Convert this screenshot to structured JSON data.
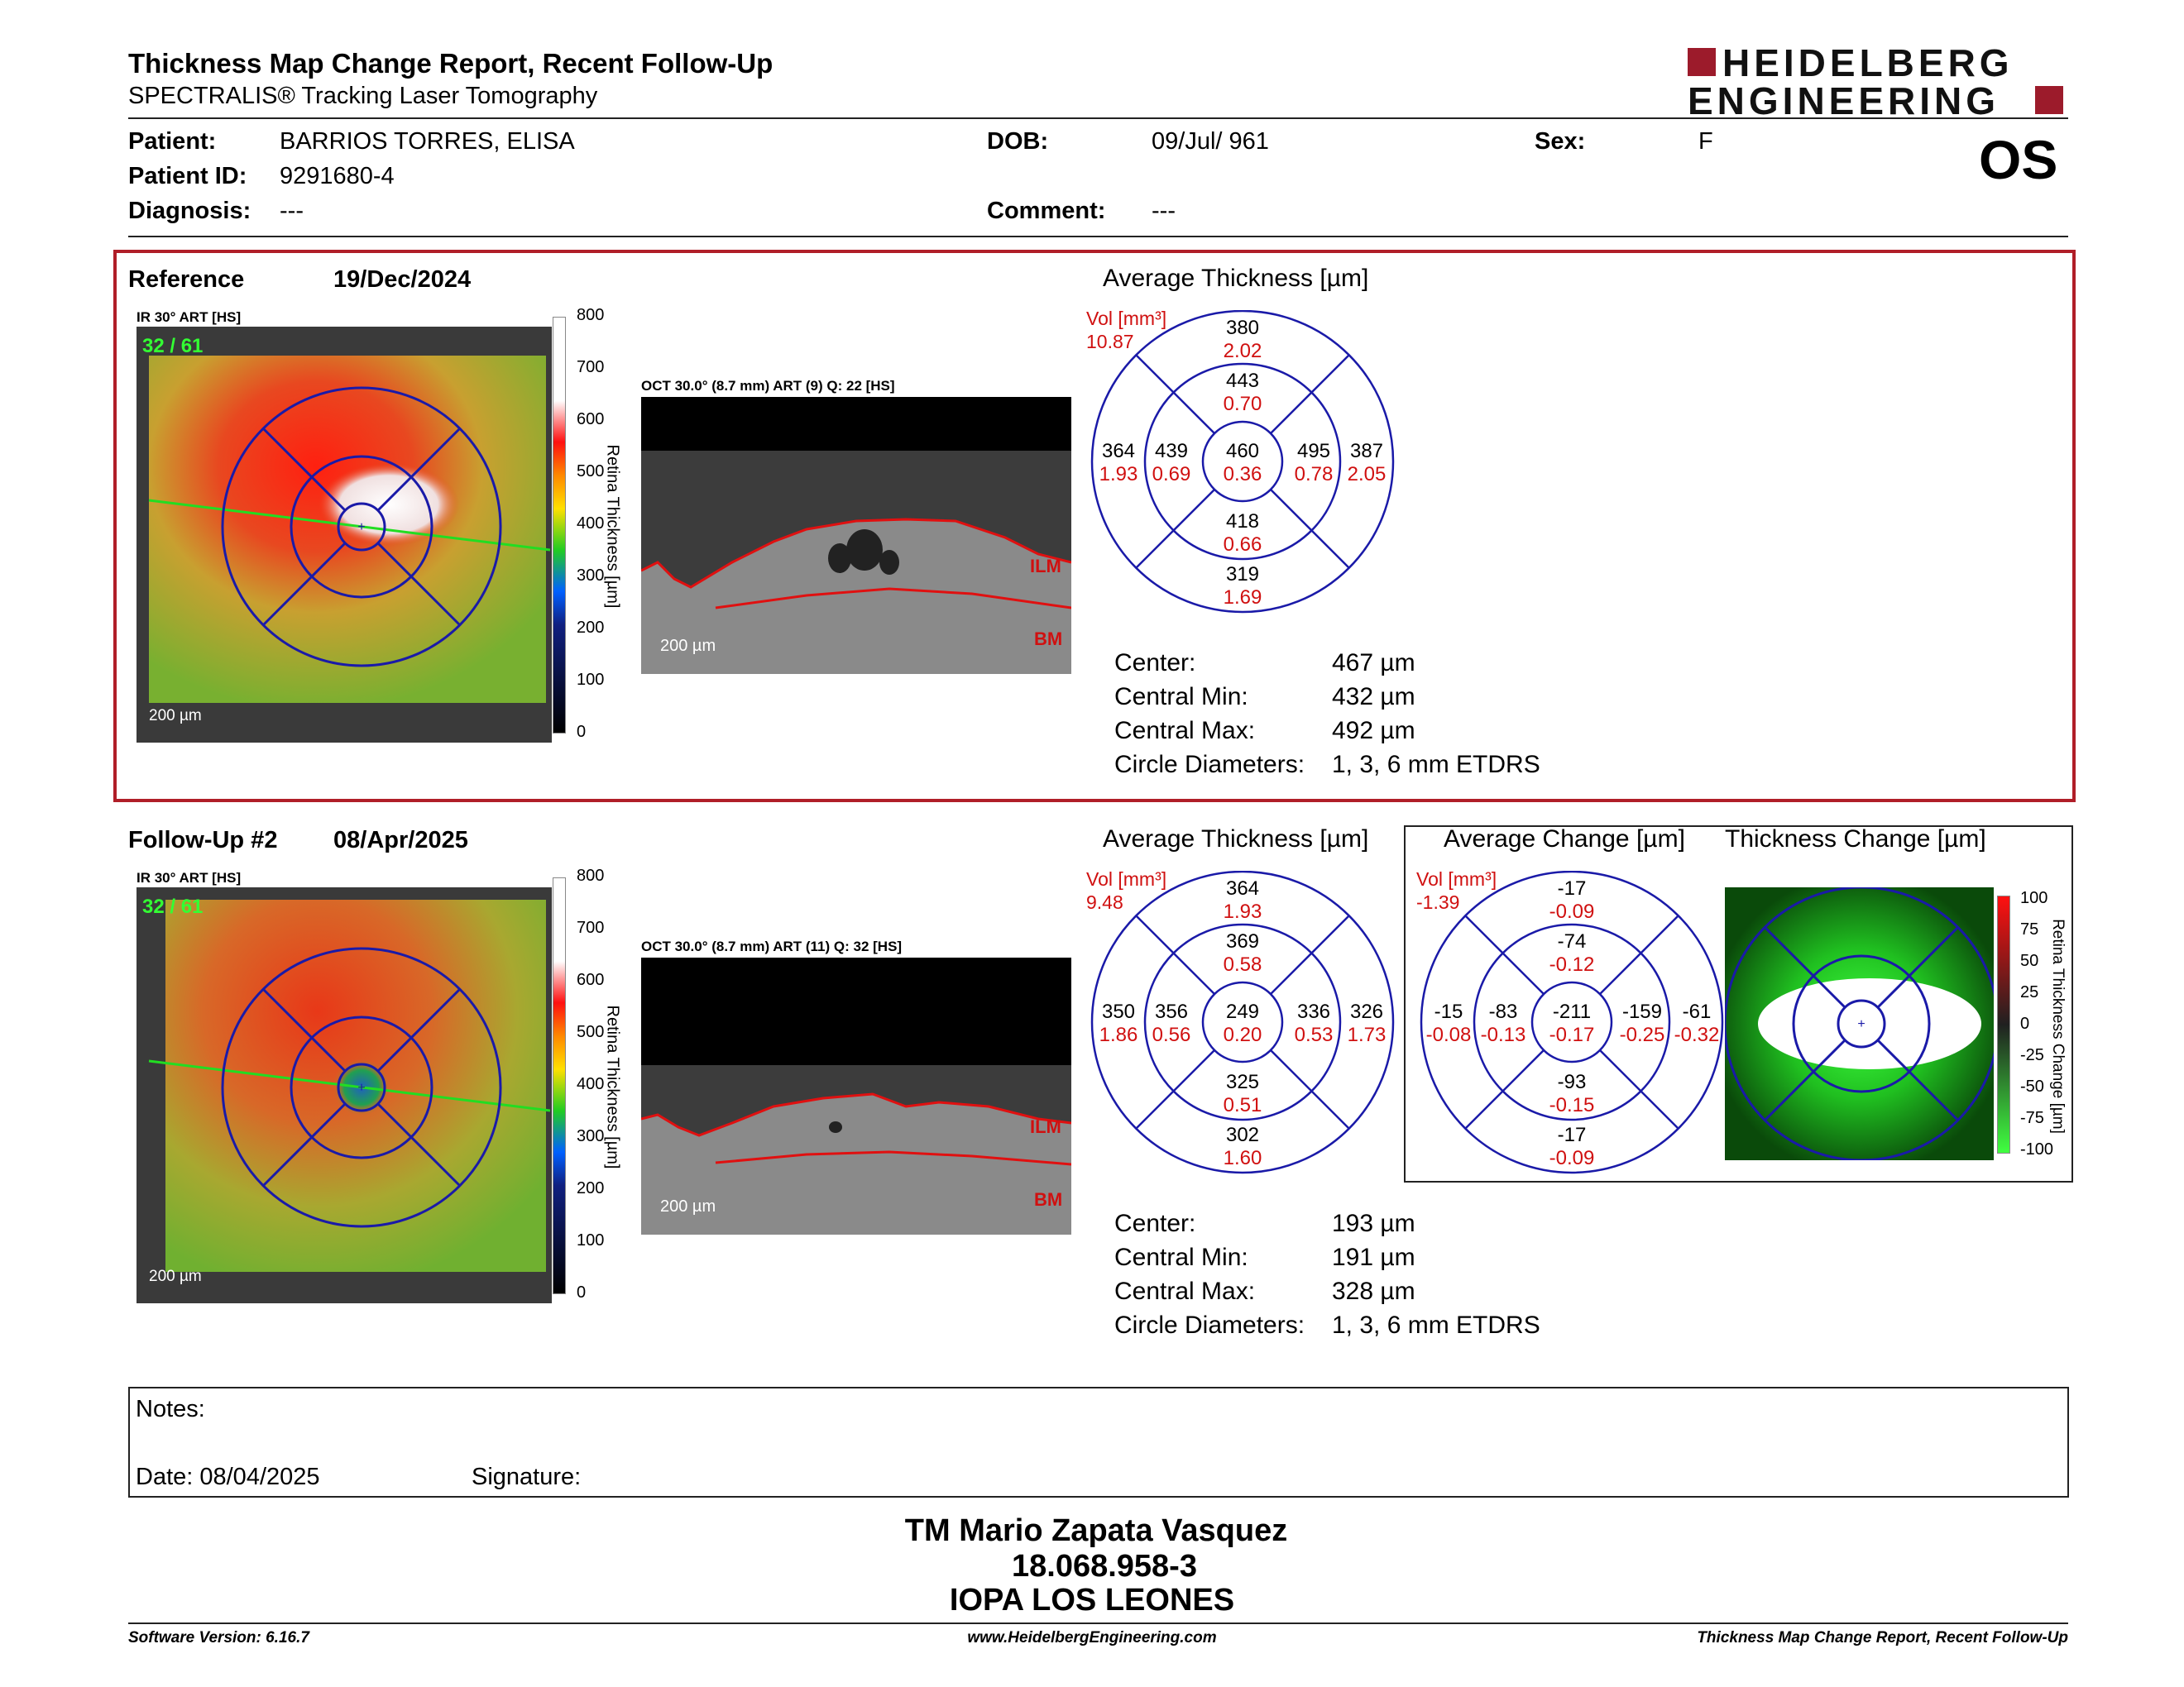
{
  "header": {
    "title": "Thickness Map Change Report, Recent Follow-Up",
    "subtitle": "SPECTRALIS® Tracking Laser Tomography",
    "logo_line1": "HEIDELBERG",
    "logo_line2": "ENGINEERING",
    "eye": "OS"
  },
  "patient": {
    "patient_label": "Patient:",
    "patient_value": "BARRIOS TORRES, ELISA",
    "id_label": "Patient ID:",
    "id_value": "9291680-4",
    "diag_label": "Diagnosis:",
    "diag_value": "---",
    "dob_label": "DOB:",
    "dob_value": "09/Jul/ 961",
    "comment_label": "Comment:",
    "comment_value": "---",
    "sex_label": "Sex:",
    "sex_value": "F"
  },
  "colors": {
    "accent_red": "#b01e28",
    "circle_blue": "#1a1aa8",
    "value_red": "#d01010"
  },
  "reference": {
    "label": "Reference",
    "date": "19/Dec/2024",
    "ir_tag": "IR 30° ART [HS]",
    "frame": "32 / 61",
    "scalebar": "200 µm",
    "oct_tag": "OCT 30.0° (8.7 mm) ART (9) Q: 22 [HS]",
    "oct_scalebar": "200 µm",
    "ilm": "ILM",
    "bm": "BM",
    "colorbar_ticks": [
      "800",
      "700",
      "600",
      "500",
      "400",
      "300",
      "200",
      "100",
      "0"
    ],
    "colorbar_label": "Retina Thickness [µm]",
    "avg_title": "Average Thickness [µm]",
    "vol_label": "Vol [mm³]",
    "vol_value": "10.87",
    "sectors": {
      "top_outer": [
        "380",
        "2.02"
      ],
      "top_inner": [
        "443",
        "0.70"
      ],
      "left_outer": [
        "364",
        "1.93"
      ],
      "left_inner": [
        "439",
        "0.69"
      ],
      "center": [
        "460",
        "0.36"
      ],
      "right_inner": [
        "495",
        "0.78"
      ],
      "right_outer": [
        "387",
        "2.05"
      ],
      "bottom_inner": [
        "418",
        "0.66"
      ],
      "bottom_outer": [
        "319",
        "1.69"
      ]
    },
    "stats": {
      "center_label": "Center:",
      "center_value": "467 µm",
      "min_label": "Central Min:",
      "min_value": "432 µm",
      "max_label": "Central Max:",
      "max_value": "492 µm",
      "diam_label": "Circle Diameters:",
      "diam_value": "1, 3, 6 mm ETDRS"
    }
  },
  "followup": {
    "label": "Follow-Up #2",
    "date": "08/Apr/2025",
    "ir_tag": "IR 30° ART [HS]",
    "frame": "32 / 61",
    "scalebar": "200 µm",
    "oct_tag": "OCT 30.0° (8.7 mm) ART (11) Q: 32 [HS]",
    "oct_scalebar": "200 µm",
    "ilm": "ILM",
    "bm": "BM",
    "colorbar_ticks": [
      "800",
      "700",
      "600",
      "500",
      "400",
      "300",
      "200",
      "100",
      "0"
    ],
    "colorbar_label": "Retina Thickness [µm]",
    "avg_title": "Average Thickness [µm]",
    "vol_label": "Vol [mm³]",
    "vol_value": "9.48",
    "sectors": {
      "top_outer": [
        "364",
        "1.93"
      ],
      "top_inner": [
        "369",
        "0.58"
      ],
      "left_outer": [
        "350",
        "1.86"
      ],
      "left_inner": [
        "356",
        "0.56"
      ],
      "center": [
        "249",
        "0.20"
      ],
      "right_inner": [
        "336",
        "0.53"
      ],
      "right_outer": [
        "326",
        "1.73"
      ],
      "bottom_inner": [
        "325",
        "0.51"
      ],
      "bottom_outer": [
        "302",
        "1.60"
      ]
    },
    "stats": {
      "center_label": "Center:",
      "center_value": "193 µm",
      "min_label": "Central Min:",
      "min_value": "191 µm",
      "max_label": "Central Max:",
      "max_value": "328 µm",
      "diam_label": "Circle Diameters:",
      "diam_value": "1, 3, 6 mm ETDRS"
    },
    "change_title": "Average Change [µm]",
    "change_vol_label": "Vol [mm³]",
    "change_vol_value": "-1.39",
    "change_sectors": {
      "top_outer": [
        "-17",
        "-0.09"
      ],
      "top_inner": [
        "-74",
        "-0.12"
      ],
      "left_outer": [
        "-15",
        "-0.08"
      ],
      "left_inner": [
        "-83",
        "-0.13"
      ],
      "center": [
        "-211",
        "-0.17"
      ],
      "right_inner": [
        "-159",
        "-0.25"
      ],
      "right_outer": [
        "-61",
        "-0.32"
      ],
      "bottom_inner": [
        "-93",
        "-0.15"
      ],
      "bottom_outer": [
        "-17",
        "-0.09"
      ]
    },
    "tchange_title": "Thickness Change [µm]",
    "tchange_ticks": [
      "100",
      "75",
      "50",
      "25",
      "0",
      "-25",
      "-50",
      "-75",
      "-100"
    ],
    "tchange_label": "Retina Thickness Change [µm]"
  },
  "notes": {
    "notes_label": "Notes:",
    "date_label": "Date: 08/04/2025",
    "signature_label": "Signature:"
  },
  "signature": {
    "name": "TM Mario Zapata Vasquez",
    "rut": "18.068.958-3",
    "org": "IOPA LOS LEONES"
  },
  "footer": {
    "left": "Software Version: 6.16.7",
    "center": "www.HeidelbergEngineering.com",
    "right": "Thickness Map Change Report, Recent Follow-Up"
  }
}
